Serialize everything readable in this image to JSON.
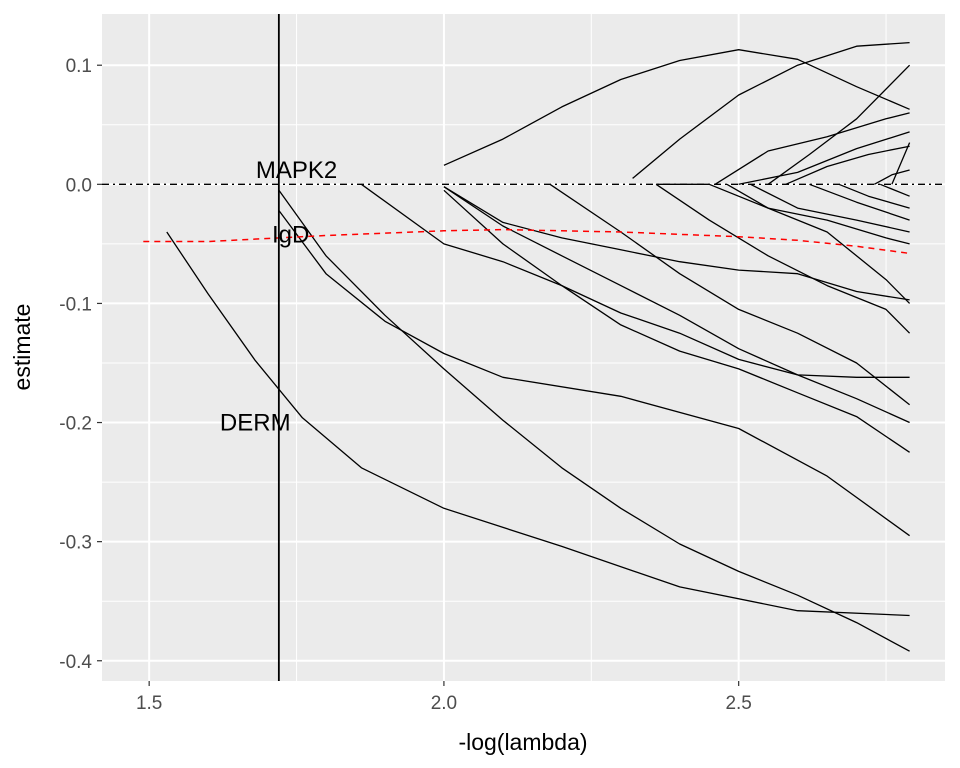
{
  "chart_data": {
    "type": "line",
    "xlabel": "-log(lambda)",
    "ylabel": "estimate",
    "xlim": [
      1.42,
      2.85
    ],
    "ylim": [
      -0.417,
      0.143
    ],
    "x_ticks": [
      1.5,
      2.0,
      2.5
    ],
    "x_tick_labels": [
      "1.5",
      "2.0",
      "2.5"
    ],
    "y_ticks": [
      0.1,
      0.0,
      -0.1,
      -0.2,
      -0.3,
      -0.4
    ],
    "y_tick_labels": [
      "0.1",
      "0.0",
      "-0.1",
      "-0.2",
      "-0.3",
      "-0.4"
    ],
    "grid": true,
    "colors": {
      "panel": "#ebebeb",
      "grid": "#ffffff",
      "line": "#000000",
      "dashed": "#ff0000"
    },
    "vline_x": 1.72,
    "hline_y": 0.0,
    "annotations": [
      {
        "text": "MAPK2",
        "x": 1.75,
        "y": 0.012
      },
      {
        "text": "IgD",
        "x": 1.74,
        "y": -0.042
      },
      {
        "text": "DERM",
        "x": 1.68,
        "y": -0.2
      }
    ],
    "dashed_series": {
      "x": [
        1.49,
        1.6,
        1.8,
        2.0,
        2.1,
        2.3,
        2.5,
        2.6,
        2.7,
        2.79
      ],
      "y": [
        -0.048,
        -0.048,
        -0.043,
        -0.039,
        -0.038,
        -0.04,
        -0.044,
        -0.047,
        -0.052,
        -0.058
      ]
    },
    "series": [
      {
        "x": [
          1.53,
          1.6,
          1.68,
          1.76,
          1.86,
          2.0,
          2.2,
          2.4,
          2.6,
          2.79
        ],
        "y": [
          -0.04,
          -0.092,
          -0.148,
          -0.196,
          -0.238,
          -0.272,
          -0.304,
          -0.338,
          -0.358,
          -0.362
        ]
      },
      {
        "x": [
          1.72,
          1.8,
          1.9,
          2.0,
          2.1,
          2.3,
          2.5,
          2.65,
          2.79
        ],
        "y": [
          -0.022,
          -0.075,
          -0.115,
          -0.142,
          -0.162,
          -0.178,
          -0.205,
          -0.245,
          -0.295
        ]
      },
      {
        "x": [
          1.72,
          1.8,
          1.9,
          2.0,
          2.1,
          2.2,
          2.3,
          2.4,
          2.5,
          2.6,
          2.7,
          2.79
        ],
        "y": [
          -0.005,
          -0.06,
          -0.11,
          -0.155,
          -0.198,
          -0.238,
          -0.272,
          -0.302,
          -0.325,
          -0.345,
          -0.368,
          -0.392
        ]
      },
      {
        "x": [
          2.0,
          2.1,
          2.2,
          2.3,
          2.4,
          2.5,
          2.6,
          2.7,
          2.79
        ],
        "y": [
          0.016,
          0.038,
          0.065,
          0.088,
          0.104,
          0.113,
          0.105,
          0.082,
          0.063
        ]
      },
      {
        "x": [
          2.32,
          2.4,
          2.5,
          2.6,
          2.7,
          2.79
        ],
        "y": [
          0.005,
          0.038,
          0.075,
          0.1,
          0.116,
          0.119
        ]
      },
      {
        "x": [
          1.86,
          2.0,
          2.1,
          2.2,
          2.3,
          2.4,
          2.5,
          2.6,
          2.7,
          2.79
        ],
        "y": [
          0.0,
          -0.05,
          -0.065,
          -0.085,
          -0.108,
          -0.125,
          -0.147,
          -0.16,
          -0.162,
          -0.162
        ]
      },
      {
        "x": [
          2.0,
          2.1,
          2.2,
          2.3,
          2.4,
          2.5,
          2.6,
          2.7,
          2.79
        ],
        "y": [
          -0.002,
          -0.035,
          -0.06,
          -0.085,
          -0.11,
          -0.138,
          -0.16,
          -0.18,
          -0.2
        ]
      },
      {
        "x": [
          2.0,
          2.1,
          2.2,
          2.3,
          2.4,
          2.5,
          2.6,
          2.7,
          2.79
        ],
        "y": [
          -0.005,
          -0.05,
          -0.085,
          -0.118,
          -0.14,
          -0.155,
          -0.175,
          -0.195,
          -0.225
        ]
      },
      {
        "x": [
          2.18,
          2.3,
          2.4,
          2.5,
          2.6,
          2.7,
          2.79
        ],
        "y": [
          0.0,
          -0.04,
          -0.075,
          -0.105,
          -0.125,
          -0.15,
          -0.185
        ]
      },
      {
        "x": [
          2.36,
          2.45,
          2.55,
          2.65,
          2.75,
          2.79
        ],
        "y": [
          0.0,
          -0.03,
          -0.06,
          -0.085,
          -0.105,
          -0.125
        ]
      },
      {
        "x": [
          2.0,
          2.1,
          2.2,
          2.3,
          2.4,
          2.5,
          2.6,
          2.7,
          2.79
        ],
        "y": [
          -0.002,
          -0.032,
          -0.045,
          -0.055,
          -0.065,
          -0.072,
          -0.075,
          -0.09,
          -0.097
        ]
      },
      {
        "x": [
          2.36,
          2.45,
          2.55,
          2.65,
          2.75,
          2.79
        ],
        "y": [
          0.0,
          0.0,
          -0.02,
          -0.04,
          -0.08,
          -0.1
        ]
      },
      {
        "x": [
          2.46,
          2.55,
          2.65,
          2.75,
          2.79
        ],
        "y": [
          0.0,
          0.028,
          0.04,
          0.055,
          0.06
        ]
      },
      {
        "x": [
          2.5,
          2.6,
          2.7,
          2.79
        ],
        "y": [
          0.0,
          0.01,
          0.03,
          0.044
        ]
      },
      {
        "x": [
          2.55,
          2.62,
          2.7,
          2.79
        ],
        "y": [
          0.0,
          0.025,
          0.055,
          0.1
        ]
      },
      {
        "x": [
          2.52,
          2.6,
          2.7,
          2.79
        ],
        "y": [
          0.0,
          -0.02,
          -0.03,
          -0.04
        ]
      },
      {
        "x": [
          2.58,
          2.65,
          2.72,
          2.79
        ],
        "y": [
          0.0,
          0.015,
          0.025,
          0.032
        ]
      },
      {
        "x": [
          2.62,
          2.7,
          2.79
        ],
        "y": [
          0.0,
          -0.015,
          -0.03
        ]
      },
      {
        "x": [
          2.67,
          2.72,
          2.79
        ],
        "y": [
          0.0,
          -0.01,
          -0.02
        ]
      },
      {
        "x": [
          2.73,
          2.76,
          2.79
        ],
        "y": [
          0.0,
          0.008,
          0.012
        ]
      },
      {
        "x": [
          2.74,
          2.79
        ],
        "y": [
          0.0,
          -0.01
        ]
      },
      {
        "x": [
          2.48,
          2.55,
          2.65,
          2.75,
          2.79
        ],
        "y": [
          0.0,
          -0.02,
          -0.03,
          -0.045,
          -0.05
        ]
      },
      {
        "x": [
          2.76,
          2.79
        ],
        "y": [
          0.0,
          0.035
        ]
      }
    ]
  }
}
